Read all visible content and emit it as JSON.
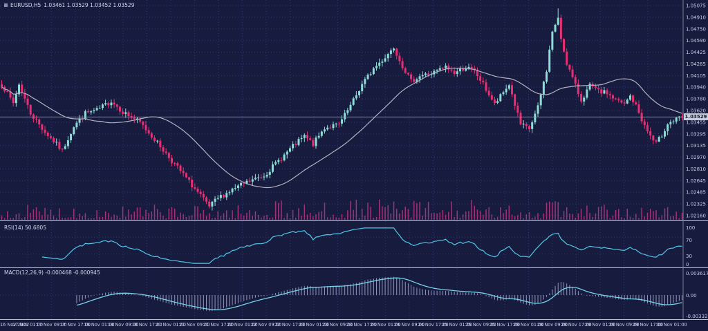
{
  "title": {
    "icon": "window-square-icon",
    "symbol_period": "EURUSD,H5",
    "ohlc_text": "1.03461 1.03529 1.03452 1.03529"
  },
  "rsi_pane": {
    "label": "RSI(14) 50.6805"
  },
  "macd_pane": {
    "label": "MACD(12,26,9) -0.000468 -0.000945"
  },
  "price_tag": "1.03529",
  "chart_data": {
    "type": "candlestick",
    "title": "EURUSD,H5 1.03461 1.03529 1.03452 1.03529",
    "ohlc_display": {
      "open": 1.03461,
      "high": 1.03529,
      "low": 1.03452,
      "close": 1.03529
    },
    "price_axis_ticks": [
      "1.05075",
      "1.04910",
      "1.04750",
      "1.04590",
      "1.04425",
      "1.04265",
      "1.04105",
      "1.03940",
      "1.03780",
      "1.03620",
      "1.03455",
      "1.03295",
      "1.03135",
      "1.02970",
      "1.02810",
      "1.02645",
      "1.02485",
      "1.02325",
      "1.02160"
    ],
    "price_range": {
      "top": 1.05075,
      "bottom": 1.0216
    },
    "current_price": 1.03529,
    "time_axis_labels": [
      "16 Nov 2022",
      "17 Nov 01:00",
      "17 Nov 09:00",
      "17 Nov 17:00",
      "18 Nov 01:00",
      "18 Nov 09:00",
      "18 Nov 17:00",
      "21 Nov 01:00",
      "21 Nov 09:00",
      "21 Nov 17:00",
      "22 Nov 01:00",
      "22 Nov 09:00",
      "22 Nov 17:00",
      "23 Nov 01:00",
      "23 Nov 09:00",
      "23 Nov 17:00",
      "24 Nov 01:00",
      "24 Nov 09:00",
      "24 Nov 17:00",
      "25 Nov 01:00",
      "25 Nov 09:00",
      "25 Nov 17:00",
      "28 Nov 01:00",
      "28 Nov 09:00",
      "28 Nov 17:00",
      "29 Nov 01:00",
      "29 Nov 09:00",
      "29 Nov 17:00",
      "30 Nov 01:00"
    ],
    "num_candles": 237,
    "close_path": [
      [
        0,
        1.0398
      ],
      [
        4,
        1.0372
      ],
      [
        6,
        1.0398
      ],
      [
        10,
        1.0358
      ],
      [
        15,
        1.0332
      ],
      [
        19,
        1.0315
      ],
      [
        21,
        1.0306
      ],
      [
        25,
        1.034
      ],
      [
        29,
        1.0358
      ],
      [
        33,
        1.0362
      ],
      [
        38,
        1.0375
      ],
      [
        42,
        1.036
      ],
      [
        48,
        1.0345
      ],
      [
        53,
        1.0322
      ],
      [
        58,
        1.0297
      ],
      [
        64,
        1.0268
      ],
      [
        69,
        1.0243
      ],
      [
        72,
        1.0228
      ],
      [
        75,
        1.024
      ],
      [
        80,
        1.0252
      ],
      [
        85,
        1.0262
      ],
      [
        91,
        1.0272
      ],
      [
        96,
        1.0292
      ],
      [
        101,
        1.0312
      ],
      [
        105,
        1.0326
      ],
      [
        108,
        1.0315
      ],
      [
        112,
        1.0338
      ],
      [
        117,
        1.0342
      ],
      [
        121,
        1.0368
      ],
      [
        125,
        1.0398
      ],
      [
        129,
        1.042
      ],
      [
        133,
        1.0436
      ],
      [
        136,
        1.045
      ],
      [
        139,
        1.0424
      ],
      [
        142,
        1.0402
      ],
      [
        145,
        1.041
      ],
      [
        149,
        1.0413
      ],
      [
        154,
        1.0422
      ],
      [
        157,
        1.0414
      ],
      [
        161,
        1.0422
      ],
      [
        164,
        1.0416
      ],
      [
        167,
        1.0398
      ],
      [
        171,
        1.037
      ],
      [
        176,
        1.0398
      ],
      [
        180,
        1.0342
      ],
      [
        183,
        1.0336
      ],
      [
        186,
        1.0366
      ],
      [
        189,
        1.0418
      ],
      [
        191,
        1.0472
      ],
      [
        193,
        1.0488
      ],
      [
        194,
        1.0462
      ],
      [
        196,
        1.0428
      ],
      [
        199,
        1.0396
      ],
      [
        201,
        1.0376
      ],
      [
        204,
        1.0396
      ],
      [
        207,
        1.0388
      ],
      [
        210,
        1.0386
      ],
      [
        213,
        1.0376
      ],
      [
        216,
        1.037
      ],
      [
        218,
        1.0382
      ],
      [
        220,
        1.0368
      ],
      [
        223,
        1.034
      ],
      [
        226,
        1.032
      ],
      [
        227,
        1.0316
      ],
      [
        229,
        1.0328
      ],
      [
        231,
        1.0344
      ],
      [
        234,
        1.0349
      ],
      [
        236,
        1.03529
      ]
    ],
    "moving_average": {
      "type": "SMA",
      "period": 30
    },
    "rsi": {
      "period": 14,
      "current": 50.6805,
      "axis_ticks": [
        "100",
        "70",
        "30",
        "0"
      ],
      "levels": [
        70,
        30
      ],
      "range": [
        0,
        100
      ]
    },
    "macd": {
      "fast": 12,
      "slow": 26,
      "signal_period": 9,
      "current_macd": -0.000468,
      "current_signal": -0.000945,
      "axis_ticks": [
        "0.003617",
        "0.00",
        "-0.003328"
      ],
      "range": [
        -0.003328,
        0.003617
      ]
    }
  },
  "colors": {
    "background": "#171b3e",
    "grid": "#31376a",
    "bull": "#8ddcd6",
    "bear": "#ea2e72",
    "volume": "#a23377",
    "ma_line": "#b5b2c2",
    "rsi_line": "#53c7e8",
    "macd_signal_line": "#79d2e8",
    "macd_histogram": "#a9aed2",
    "separator": "#c0c4d6",
    "axis_line": "#7d8298",
    "axis_text": "#c9cde4",
    "current_price_line": "#9aa0b8",
    "price_tag_bg": "#c9ccd9",
    "price_tag_text": "#14172e"
  }
}
